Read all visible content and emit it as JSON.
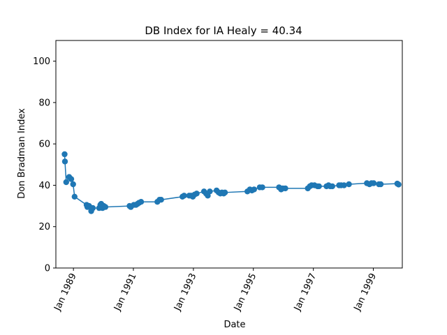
{
  "chart_data": {
    "type": "line",
    "title": "DB Index for IA Healy = 40.34",
    "xlabel": "Date",
    "ylabel": "Don Bradman Index",
    "ylim": [
      0,
      110
    ],
    "xlim": [
      "1988-06-01",
      "1999-12-20"
    ],
    "yticks": [
      0,
      20,
      40,
      60,
      80,
      100
    ],
    "xticks": [
      {
        "date": "1989-01-01",
        "label": "Jan 1989"
      },
      {
        "date": "1991-01-01",
        "label": "Jan 1991"
      },
      {
        "date": "1993-01-01",
        "label": "Jan 1993"
      },
      {
        "date": "1995-01-01",
        "label": "Jan 1995"
      },
      {
        "date": "1997-01-01",
        "label": "Jan 1997"
      },
      {
        "date": "1999-01-01",
        "label": "Jan 1999"
      }
    ],
    "grid": false,
    "line_color": "#1f77b4",
    "series": [
      {
        "x": [
          "1988-09-15",
          "1988-09-20",
          "1988-10-05",
          "1988-11-10",
          "1988-12-05",
          "1988-12-28",
          "1989-01-15",
          "1989-06-10",
          "1989-06-20",
          "1989-07-10",
          "1989-08-05",
          "1989-08-12",
          "1989-08-25",
          "1989-11-10",
          "1989-11-25",
          "1989-12-05",
          "1989-12-20",
          "1990-01-05",
          "1990-01-25",
          "1990-11-15",
          "1990-12-01",
          "1991-01-05",
          "1991-02-01",
          "1991-02-20",
          "1991-03-10",
          "1991-04-05",
          "1991-10-20",
          "1991-11-15",
          "1991-12-05",
          "1992-08-20",
          "1992-09-10",
          "1992-11-10",
          "1992-12-05",
          "1992-12-25",
          "1993-01-15",
          "1993-02-10",
          "1993-05-10",
          "1993-06-05",
          "1993-06-25",
          "1993-07-20",
          "1993-10-10",
          "1993-11-05",
          "1993-11-25",
          "1993-12-15",
          "1994-01-05",
          "1994-01-20",
          "1994-10-20",
          "1994-11-20",
          "1994-12-15",
          "1995-01-10",
          "1995-03-20",
          "1995-04-20",
          "1995-11-10",
          "1995-12-05",
          "1995-12-25",
          "1996-01-25",
          "1996-10-25",
          "1996-11-20",
          "1996-12-10",
          "1997-01-15",
          "1997-02-20",
          "1997-03-10",
          "1997-06-10",
          "1997-07-05",
          "1997-07-25",
          "1997-08-20",
          "1997-11-10",
          "1997-12-05",
          "1998-01-10",
          "1998-03-10",
          "1998-10-15",
          "1998-11-15",
          "1998-12-10",
          "1999-01-05",
          "1999-03-10",
          "1999-04-01",
          "1999-10-20",
          "1999-11-05"
        ],
        "values": [
          55,
          51.5,
          41.5,
          44,
          43,
          40.5,
          34.5,
          30.5,
          29.5,
          30,
          27.5,
          29,
          29,
          29,
          30.5,
          31,
          29,
          30,
          29.5,
          30,
          29.5,
          30.5,
          30.5,
          31,
          31.5,
          32,
          32,
          33,
          33,
          34.5,
          35,
          35,
          35,
          34.5,
          35.5,
          36,
          37,
          36,
          35,
          37,
          37.5,
          36.5,
          36,
          36.5,
          36,
          36.5,
          37,
          38,
          37.5,
          38,
          39,
          39,
          39,
          38,
          38.5,
          38.5,
          38.5,
          39.5,
          40,
          40,
          39.5,
          39.5,
          39.5,
          40,
          39.5,
          39.5,
          40,
          40,
          40,
          40.5,
          41,
          40.5,
          41,
          41,
          40.5,
          40.5,
          40.8,
          40.34
        ]
      }
    ]
  }
}
